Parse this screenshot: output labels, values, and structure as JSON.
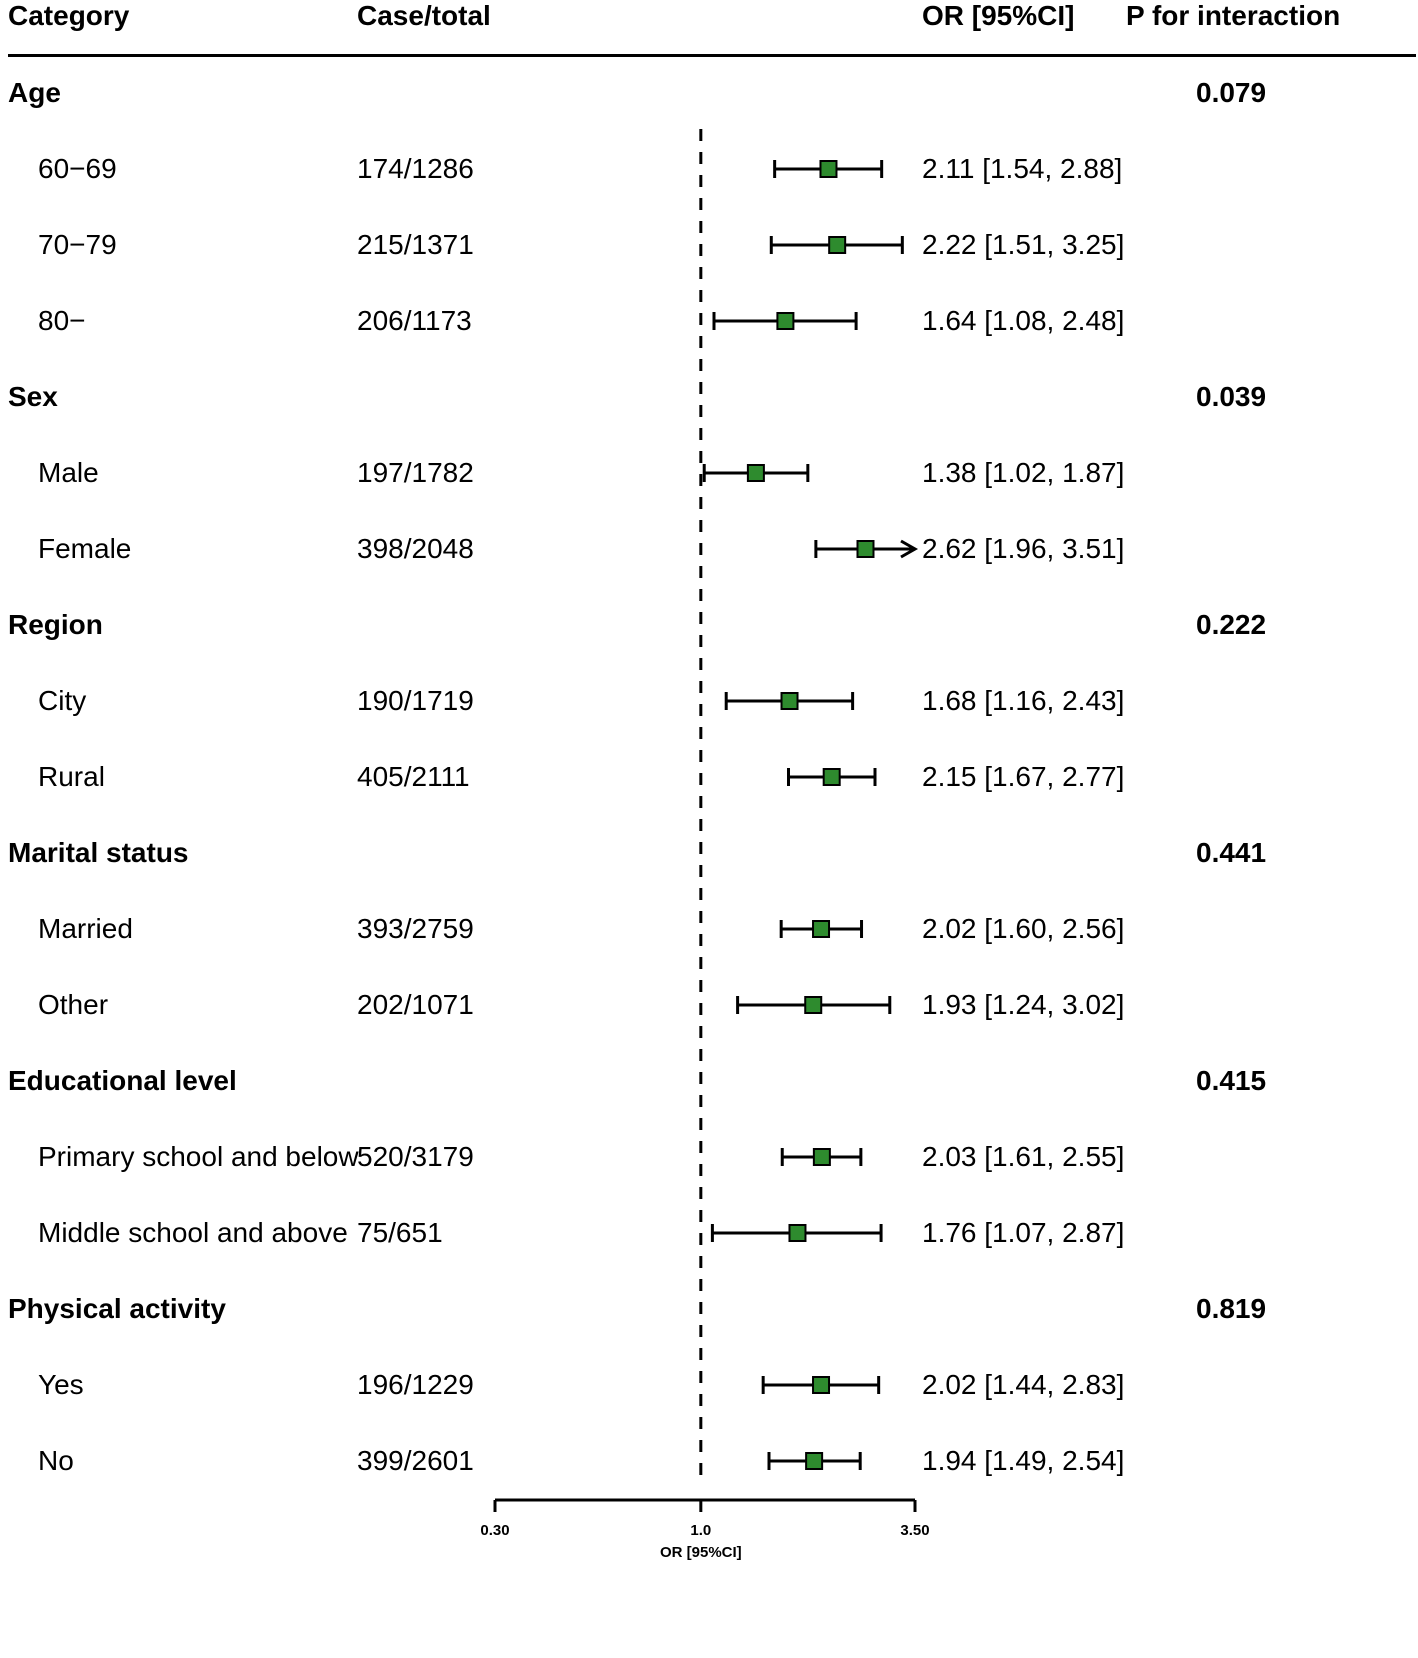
{
  "header": {
    "category": "Category",
    "case_total": "Case/total",
    "or_ci": "OR [95%CI]",
    "p_interaction": "P for interaction"
  },
  "colors": {
    "marker": "#2e8b2e",
    "line": "#000000"
  },
  "chart_data": {
    "type": "forest",
    "x_scale": "log",
    "xlim": [
      0.3,
      3.5
    ],
    "reference_line": 1.0,
    "x_ticks": [
      "0.30",
      "1.0",
      "3.50"
    ],
    "xlabel": "OR [95%CI]",
    "groups": [
      {
        "label": "Age",
        "p_interaction": "0.079",
        "rows": [
          {
            "label": "60−69",
            "case_total": "174/1286",
            "or": 2.11,
            "lo": 1.54,
            "hi": 2.88,
            "text": "2.11 [1.54, 2.88]"
          },
          {
            "label": "70−79",
            "case_total": "215/1371",
            "or": 2.22,
            "lo": 1.51,
            "hi": 3.25,
            "text": "2.22 [1.51, 3.25]"
          },
          {
            "label": "80−",
            "case_total": "206/1173",
            "or": 1.64,
            "lo": 1.08,
            "hi": 2.48,
            "text": "1.64 [1.08, 2.48]"
          }
        ]
      },
      {
        "label": "Sex",
        "p_interaction": "0.039",
        "rows": [
          {
            "label": "Male",
            "case_total": "197/1782",
            "or": 1.38,
            "lo": 1.02,
            "hi": 1.87,
            "text": "1.38 [1.02, 1.87]"
          },
          {
            "label": "Female",
            "case_total": "398/2048",
            "or": 2.62,
            "lo": 1.96,
            "hi": 3.51,
            "text": "2.62 [1.96, 3.51]",
            "clipped": true
          }
        ]
      },
      {
        "label": "Region",
        "p_interaction": "0.222",
        "rows": [
          {
            "label": "City",
            "case_total": "190/1719",
            "or": 1.68,
            "lo": 1.16,
            "hi": 2.43,
            "text": "1.68 [1.16, 2.43]"
          },
          {
            "label": "Rural",
            "case_total": "405/2111",
            "or": 2.15,
            "lo": 1.67,
            "hi": 2.77,
            "text": "2.15 [1.67, 2.77]"
          }
        ]
      },
      {
        "label": "Marital status",
        "p_interaction": "0.441",
        "rows": [
          {
            "label": "Married",
            "case_total": "393/2759",
            "or": 2.02,
            "lo": 1.6,
            "hi": 2.56,
            "text": "2.02 [1.60, 2.56]"
          },
          {
            "label": "Other",
            "case_total": "202/1071",
            "or": 1.93,
            "lo": 1.24,
            "hi": 3.02,
            "text": "1.93 [1.24, 3.02]"
          }
        ]
      },
      {
        "label": "Educational level",
        "p_interaction": "0.415",
        "rows": [
          {
            "label": "Primary school and below",
            "case_total": "520/3179",
            "or": 2.03,
            "lo": 1.61,
            "hi": 2.55,
            "text": "2.03 [1.61, 2.55]"
          },
          {
            "label": "Middle school and above",
            "case_total": "75/651",
            "or": 1.76,
            "lo": 1.07,
            "hi": 2.87,
            "text": "1.76 [1.07, 2.87]"
          }
        ]
      },
      {
        "label": "Physical activity",
        "p_interaction": "0.819",
        "rows": [
          {
            "label": "Yes",
            "case_total": "196/1229",
            "or": 2.02,
            "lo": 1.44,
            "hi": 2.83,
            "text": "2.02 [1.44, 2.83]"
          },
          {
            "label": "No",
            "case_total": "399/2601",
            "or": 1.94,
            "lo": 1.49,
            "hi": 2.54,
            "text": "1.94 [1.49, 2.54]"
          }
        ]
      }
    ]
  }
}
